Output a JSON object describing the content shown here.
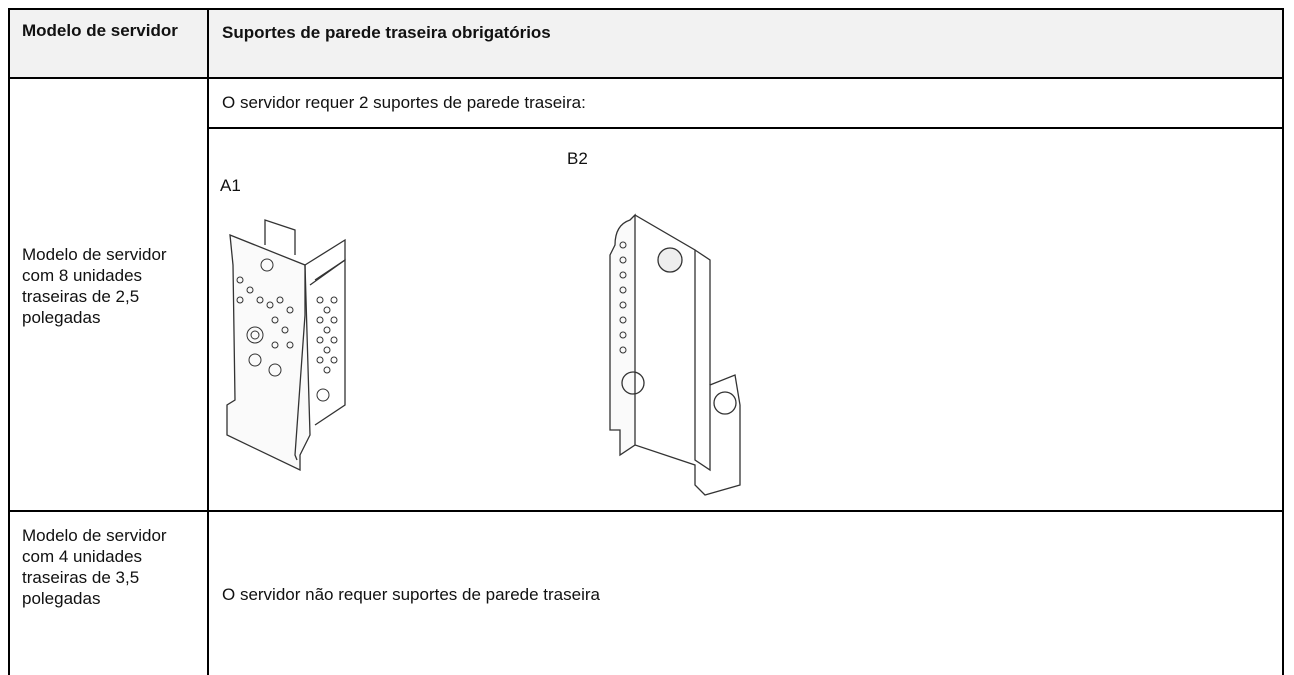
{
  "table": {
    "header": [
      "Modelo de servidor",
      "Suportes de parede traseira obrigatórios"
    ],
    "rows": [
      {
        "model": "Modelo de servidor com 8 unidades traseiras de 2,5 polegadas",
        "note": "O servidor requer 2 suportes de parede traseira:",
        "figure_labels": [
          "A1",
          "B2"
        ]
      },
      {
        "model": "Modelo de servidor com 4 unidades traseiras de 3,5 polegadas",
        "note": "O servidor não requer suportes de parede traseira"
      }
    ]
  }
}
